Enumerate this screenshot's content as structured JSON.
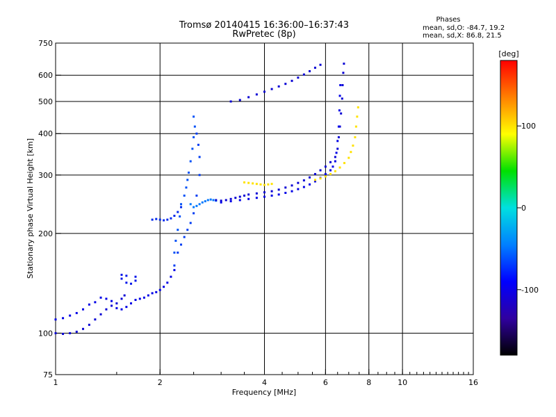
{
  "chart_data": {
    "type": "scatter",
    "title": "Tromsø 20140415 16:36:00–16:37:43",
    "subtitle": "RwPretec (8p)",
    "xlabel": "Frequency [MHz]",
    "ylabel": "Stationary phase Virtual Height [km]",
    "x_scale": "log",
    "y_scale": "log",
    "xlim": [
      1,
      16
    ],
    "ylim": [
      75,
      750
    ],
    "x_ticks": [
      1,
      2,
      4,
      6,
      8,
      10,
      16
    ],
    "x_tick_labels": [
      "1",
      "2",
      "4",
      "6",
      "8",
      "10",
      "16"
    ],
    "y_ticks": [
      75,
      100,
      200,
      300,
      400,
      500,
      600,
      750
    ],
    "y_tick_labels": [
      "75",
      "100",
      "200",
      "300",
      "400",
      "500",
      "600",
      "750"
    ],
    "x_grid": [
      2,
      4,
      6,
      8,
      10
    ],
    "y_grid": [
      100,
      200,
      300,
      400,
      500,
      600
    ],
    "grid": true,
    "phases_box": {
      "heading": "Phases",
      "line1": "mean, sd,O: -84.7, 19.2",
      "line2": "mean, sd,X:  86.8, 21.5"
    },
    "colorbar": {
      "label": "[deg]",
      "range": [
        -180,
        180
      ],
      "ticks": [
        100,
        0,
        -100
      ],
      "tick_labels": [
        "100",
        "0",
        "-100"
      ],
      "colors": [
        "#ff0000",
        "#ff8000",
        "#ffff00",
        "#00e000",
        "#00e0e0",
        "#0080ff",
        "#0000ff",
        "#3000a0",
        "#000000"
      ]
    },
    "series": [
      {
        "phase": -110,
        "points": [
          [
            1.0,
            110
          ],
          [
            1.05,
            111
          ],
          [
            1.1,
            113
          ],
          [
            1.15,
            115
          ],
          [
            1.2,
            118
          ],
          [
            1.25,
            122
          ],
          [
            1.3,
            124
          ],
          [
            1.35,
            128
          ],
          [
            1.4,
            127
          ],
          [
            1.45,
            125
          ],
          [
            1.5,
            119
          ],
          [
            1.55,
            118
          ],
          [
            1.6,
            120
          ],
          [
            1.65,
            123
          ],
          [
            1.7,
            126
          ],
          [
            1.75,
            127
          ],
          [
            1.8,
            128
          ],
          [
            1.85,
            130
          ],
          [
            1.9,
            132
          ],
          [
            1.95,
            133
          ],
          [
            2.0,
            135
          ],
          [
            2.05,
            138
          ],
          [
            2.1,
            142
          ],
          [
            2.15,
            148
          ],
          [
            2.2,
            155
          ]
        ]
      },
      {
        "phase": -115,
        "points": [
          [
            1.0,
            100
          ],
          [
            1.05,
            99.5
          ],
          [
            1.1,
            100
          ],
          [
            1.15,
            101
          ],
          [
            1.2,
            103
          ],
          [
            1.25,
            106
          ],
          [
            1.3,
            110
          ],
          [
            1.35,
            114
          ],
          [
            1.4,
            118
          ],
          [
            1.45,
            121
          ],
          [
            1.5,
            123
          ],
          [
            1.55,
            127
          ],
          [
            1.58,
            130
          ]
        ]
      },
      {
        "phase": -105,
        "points": [
          [
            1.55,
            146
          ],
          [
            1.6,
            142
          ],
          [
            1.65,
            141
          ],
          [
            1.7,
            144
          ],
          [
            1.55,
            150
          ],
          [
            1.6,
            149
          ],
          [
            1.7,
            148
          ]
        ]
      },
      {
        "phase": -100,
        "points": [
          [
            1.9,
            220
          ],
          [
            1.95,
            221
          ],
          [
            2.0,
            220
          ],
          [
            2.05,
            219
          ],
          [
            2.1,
            220
          ],
          [
            2.15,
            222
          ],
          [
            2.2,
            226
          ],
          [
            2.25,
            232
          ],
          [
            2.3,
            240
          ]
        ]
      },
      {
        "phase": -90,
        "points": [
          [
            2.2,
            175
          ],
          [
            2.22,
            190
          ],
          [
            2.25,
            205
          ],
          [
            2.28,
            225
          ],
          [
            2.3,
            245
          ],
          [
            2.35,
            260
          ],
          [
            2.38,
            275
          ],
          [
            2.4,
            290
          ],
          [
            2.42,
            305
          ],
          [
            2.45,
            330
          ],
          [
            2.48,
            360
          ],
          [
            2.5,
            390
          ],
          [
            2.52,
            420
          ],
          [
            2.5,
            450
          ]
        ]
      },
      {
        "phase": -95,
        "points": [
          [
            2.2,
            160
          ],
          [
            2.25,
            175
          ],
          [
            2.3,
            185
          ],
          [
            2.35,
            195
          ],
          [
            2.4,
            205
          ],
          [
            2.45,
            215
          ],
          [
            2.5,
            230
          ],
          [
            2.55,
            260
          ],
          [
            2.6,
            300
          ],
          [
            2.6,
            340
          ],
          [
            2.58,
            370
          ],
          [
            2.55,
            400
          ]
        ]
      },
      {
        "phase": -80,
        "points": [
          [
            2.45,
            245
          ],
          [
            2.5,
            240
          ],
          [
            2.55,
            242
          ],
          [
            2.6,
            245
          ],
          [
            2.65,
            248
          ],
          [
            2.7,
            250
          ],
          [
            2.75,
            252
          ],
          [
            2.8,
            253
          ],
          [
            2.85,
            252
          ],
          [
            2.9,
            251
          ]
        ]
      },
      {
        "phase": -115,
        "points": [
          [
            2.9,
            252
          ],
          [
            3.0,
            251
          ],
          [
            3.1,
            252
          ],
          [
            3.2,
            254
          ],
          [
            3.3,
            256
          ],
          [
            3.4,
            258
          ],
          [
            3.5,
            260
          ],
          [
            3.6,
            262
          ],
          [
            3.8,
            264
          ],
          [
            4.0,
            266
          ],
          [
            4.2,
            268
          ],
          [
            4.4,
            271
          ],
          [
            4.6,
            275
          ],
          [
            4.8,
            279
          ],
          [
            5.0,
            284
          ],
          [
            5.2,
            289
          ],
          [
            5.4,
            295
          ],
          [
            5.6,
            302
          ],
          [
            5.8,
            310
          ],
          [
            6.0,
            318
          ],
          [
            6.2,
            328
          ],
          [
            6.4,
            340
          ],
          [
            6.5,
            360
          ],
          [
            6.55,
            390
          ],
          [
            6.6,
            420
          ],
          [
            6.65,
            460
          ],
          [
            6.7,
            510
          ],
          [
            6.72,
            560
          ],
          [
            6.75,
            610
          ],
          [
            6.78,
            650
          ]
        ]
      },
      {
        "phase": -110,
        "points": [
          [
            3.0,
            248
          ],
          [
            3.2,
            250
          ],
          [
            3.4,
            252
          ],
          [
            3.6,
            254
          ],
          [
            3.8,
            256
          ],
          [
            4.0,
            258
          ],
          [
            4.2,
            260
          ],
          [
            4.4,
            262
          ],
          [
            4.6,
            265
          ],
          [
            4.8,
            268
          ],
          [
            5.0,
            272
          ],
          [
            5.2,
            276
          ],
          [
            5.4,
            281
          ],
          [
            5.6,
            287
          ],
          [
            5.8,
            294
          ],
          [
            6.0,
            302
          ],
          [
            6.2,
            310
          ],
          [
            6.3,
            318
          ],
          [
            6.4,
            330
          ],
          [
            6.45,
            350
          ],
          [
            6.5,
            380
          ],
          [
            6.55,
            420
          ],
          [
            6.58,
            470
          ],
          [
            6.6,
            520
          ],
          [
            6.62,
            560
          ]
        ]
      },
      {
        "phase": 110,
        "points": [
          [
            3.5,
            285
          ],
          [
            3.6,
            284
          ],
          [
            3.7,
            283
          ],
          [
            3.8,
            282
          ],
          [
            3.9,
            281
          ],
          [
            4.0,
            280
          ],
          [
            4.1,
            281
          ],
          [
            4.2,
            282
          ],
          [
            5.6,
            290
          ],
          [
            5.8,
            293
          ],
          [
            6.0,
            297
          ],
          [
            6.2,
            302
          ],
          [
            6.4,
            308
          ],
          [
            6.6,
            316
          ],
          [
            6.8,
            326
          ],
          [
            7.0,
            338
          ],
          [
            7.1,
            352
          ],
          [
            7.2,
            368
          ],
          [
            7.3,
            390
          ],
          [
            7.35,
            420
          ],
          [
            7.4,
            450
          ],
          [
            7.45,
            480
          ]
        ]
      },
      {
        "phase": -115,
        "points": [
          [
            3.2,
            500
          ],
          [
            3.4,
            505
          ],
          [
            3.6,
            515
          ],
          [
            3.8,
            525
          ],
          [
            4.0,
            535
          ],
          [
            4.2,
            545
          ],
          [
            4.4,
            555
          ],
          [
            4.6,
            565
          ],
          [
            4.8,
            577
          ],
          [
            5.0,
            590
          ],
          [
            5.2,
            603
          ],
          [
            5.4,
            617
          ],
          [
            5.6,
            632
          ],
          [
            5.8,
            645
          ]
        ]
      }
    ]
  }
}
